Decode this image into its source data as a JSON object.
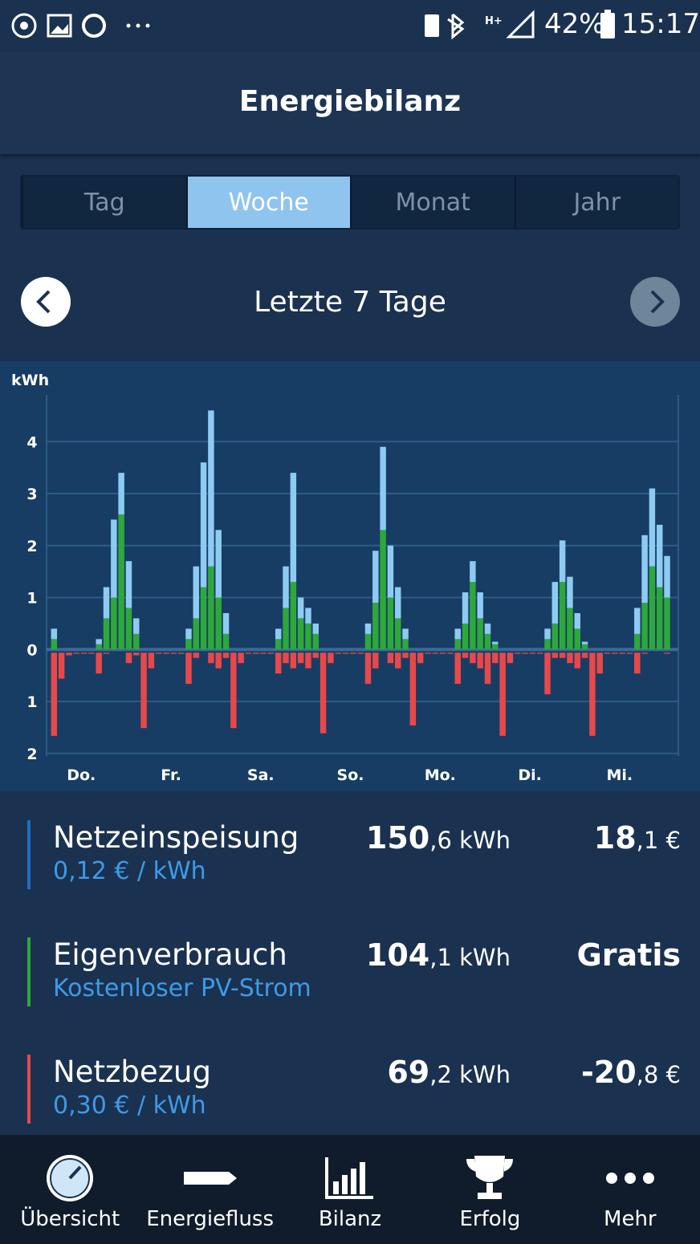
{
  "status_bar": {
    "battery": "42%",
    "time": "15:17"
  },
  "header": {
    "title": "Energiebilanz"
  },
  "tabs": [
    "Tag",
    "Woche",
    "Monat",
    "Jahr"
  ],
  "period": "Letzte 7 Tage",
  "chart_data": {
    "type": "stacked_bar",
    "y_label": "kWh",
    "x": [
      -6,
      -4,
      -2,
      0,
      2,
      4,
      6,
      8,
      10,
      12,
      14,
      16,
      18,
      20,
      22,
      24,
      26,
      28,
      30,
      32,
      34,
      36,
      38,
      40,
      42,
      44,
      46,
      48,
      50,
      52,
      54,
      56,
      58,
      60,
      62,
      64,
      66,
      68,
      70,
      72,
      74,
      76,
      78,
      80,
      82,
      84,
      86,
      88,
      90,
      92,
      94,
      96,
      98,
      100,
      102,
      104,
      106,
      108,
      110,
      112,
      114,
      116,
      118,
      120,
      122,
      124,
      126,
      128,
      130,
      132,
      134,
      136,
      138,
      140,
      142,
      144,
      146,
      148,
      150,
      152,
      154,
      156,
      158
    ],
    "xlim": [
      -8,
      161
    ],
    "xticks": [
      {
        "value": 0,
        "label": "Do."
      },
      {
        "value": 24,
        "label": "Fr."
      },
      {
        "value": 48,
        "label": "Sa."
      },
      {
        "value": 72,
        "label": "So."
      },
      {
        "value": 96,
        "label": "Mo."
      },
      {
        "value": 120,
        "label": "Di."
      },
      {
        "value": 144,
        "label": "Mi."
      }
    ],
    "ylim": [
      -2.05,
      4.9
    ],
    "yticks": [
      {
        "value": -2,
        "label": "2"
      },
      {
        "value": -1,
        "label": "1"
      },
      0,
      1,
      2,
      3,
      4
    ],
    "grid": true,
    "series": [
      {
        "name": "Eigenverbrauch",
        "color": "#2ea83a",
        "stack": "up",
        "values": [
          0.2,
          0,
          0,
          0,
          0,
          0,
          0.1,
          0.6,
          1.0,
          2.6,
          0.8,
          0.3,
          0,
          0,
          0,
          0,
          0,
          0,
          0.2,
          0.6,
          1.2,
          1.6,
          1.0,
          0.3,
          0,
          0,
          0,
          0,
          0,
          0,
          0.2,
          0.8,
          1.3,
          0.6,
          0.5,
          0.3,
          0,
          0,
          0,
          0,
          0,
          0,
          0.3,
          0.9,
          2.3,
          1.0,
          0.6,
          0.2,
          0,
          0,
          0,
          0,
          0,
          0,
          0.2,
          0.5,
          1.3,
          0.6,
          0.3,
          0.1,
          0,
          0,
          0,
          0,
          0,
          0,
          0.2,
          0.5,
          1.3,
          0.8,
          0.4,
          0.1,
          0,
          0,
          0,
          0,
          0,
          0,
          0.3,
          0.9,
          1.6,
          1.2,
          1.0
        ]
      },
      {
        "name": "Netzeinspeisung",
        "color": "#8ecbf3",
        "stack": "up",
        "values": [
          0.2,
          0,
          0,
          0,
          0,
          0,
          0.1,
          0.6,
          1.5,
          0.8,
          0.9,
          0.3,
          0,
          0,
          0,
          0,
          0,
          0,
          0.2,
          1.0,
          2.4,
          3.0,
          1.3,
          0.4,
          0,
          0,
          0,
          0,
          0,
          0,
          0.2,
          0.8,
          2.1,
          0.4,
          0.3,
          0.2,
          0,
          0,
          0,
          0,
          0,
          0,
          0.2,
          1.0,
          1.6,
          1.0,
          0.6,
          0.2,
          0,
          0,
          0,
          0,
          0,
          0,
          0.2,
          0.6,
          0.4,
          0.5,
          0.2,
          0.05,
          0,
          0,
          0,
          0,
          0,
          0,
          0.2,
          0.8,
          0.8,
          0.6,
          0.3,
          0.05,
          0,
          0,
          0,
          0,
          0,
          0,
          0.5,
          1.3,
          1.5,
          1.2,
          0.8
        ]
      },
      {
        "name": "Netzbezug",
        "color": "#e8484a",
        "stack": "down",
        "values": [
          -1.6,
          -0.5,
          -0.05,
          -0.02,
          -0.02,
          -0.02,
          -0.4,
          -0.02,
          0,
          0,
          -0.2,
          -0.05,
          -1.45,
          -0.3,
          -0.02,
          -0.02,
          -0.02,
          -0.02,
          -0.6,
          -0.1,
          0,
          -0.2,
          -0.3,
          -0.1,
          -1.45,
          -0.2,
          -0.02,
          -0.02,
          -0.02,
          -0.02,
          -0.4,
          -0.2,
          -0.3,
          -0.2,
          -0.3,
          -0.1,
          -1.55,
          -0.2,
          -0.02,
          -0.02,
          -0.02,
          -0.02,
          -0.6,
          -0.3,
          0,
          -0.2,
          -0.3,
          -0.1,
          -1.4,
          -0.2,
          -0.02,
          -0.02,
          -0.02,
          -0.02,
          -0.6,
          -0.1,
          -0.2,
          -0.3,
          -0.6,
          -0.2,
          -1.6,
          -0.2,
          -0.02,
          -0.02,
          -0.02,
          -0.02,
          -0.8,
          -0.1,
          -0.1,
          -0.2,
          -0.3,
          -0.1,
          -1.6,
          -0.4,
          -0.02,
          -0.02,
          -0.02,
          -0.02,
          -0.4,
          -0.02,
          0,
          0,
          -0.02
        ]
      }
    ]
  },
  "summary": [
    {
      "subtitle": "0,12 € / kWh",
      "energy_bold": "150",
      "energy_rest": ",6 kWh",
      "money_bold": "18",
      "money_rest": ",1 €"
    },
    {
      "subtitle": "Kostenloser PV-Strom",
      "energy_bold": "104",
      "energy_rest": ",1 kWh",
      "money_bold": "Gratis",
      "money_rest": null
    },
    {
      "subtitle": "0,30 € / kWh",
      "energy_bold": "69",
      "energy_rest": ",2 kWh",
      "money_bold": "-20",
      "money_rest": ",8 €"
    }
  ],
  "summary_series": [
    1,
    0,
    2
  ],
  "nav": [
    "Übersicht",
    "Energiefluss",
    "Bilanz",
    "Erfolg",
    "Mehr"
  ]
}
